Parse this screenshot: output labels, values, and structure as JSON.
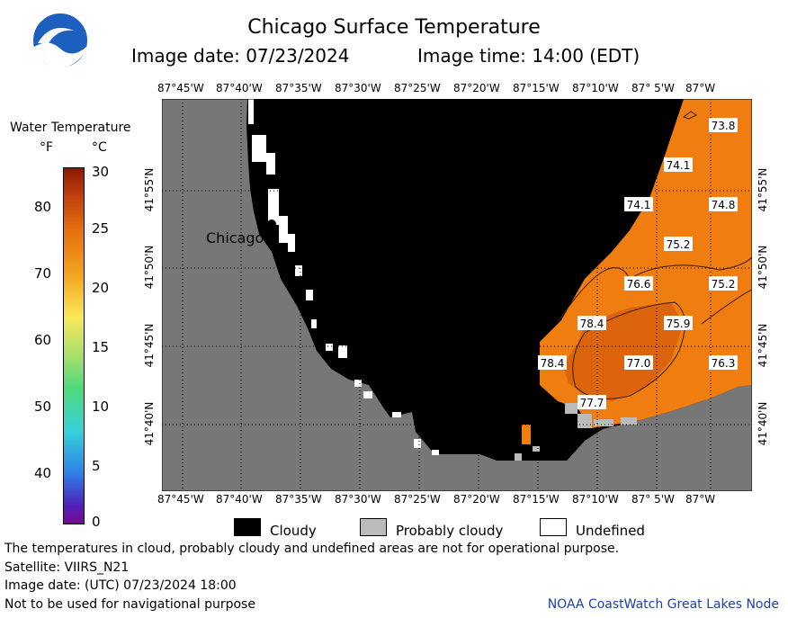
{
  "header": {
    "title": "Chicago Surface Temperature",
    "image_date": "Image date: 07/23/2024",
    "image_time": "Image time: 14:00 (EDT)"
  },
  "colorbar": {
    "title": "Water Temperature",
    "unit_f": "°F",
    "unit_c": "°C",
    "f_ticks": [
      "80",
      "70",
      "60",
      "50",
      "40"
    ],
    "c_ticks": [
      "30",
      "25",
      "20",
      "15",
      "10",
      "5",
      "0"
    ]
  },
  "map": {
    "city_label": "Chicago",
    "lon_labels": [
      "87°45'W",
      "87°40'W",
      "87°35'W",
      "87°30'W",
      "87°25'W",
      "87°20'W",
      "87°15'W",
      "87°10'W",
      "87° 5'W",
      "87°W"
    ],
    "lat_labels": [
      "41°55'N",
      "41°50'N",
      "41°45'N",
      "41°40'N"
    ],
    "temperature_labels": [
      {
        "value": "73.8"
      },
      {
        "value": "74.1"
      },
      {
        "value": "74.1"
      },
      {
        "value": "74.8"
      },
      {
        "value": "75.2"
      },
      {
        "value": "76.6"
      },
      {
        "value": "75.2"
      },
      {
        "value": "78.4"
      },
      {
        "value": "75.9"
      },
      {
        "value": "78.4"
      },
      {
        "value": "77.0"
      },
      {
        "value": "76.3"
      },
      {
        "value": "77.7"
      }
    ]
  },
  "legend": {
    "cloudy": "Cloudy",
    "probably_cloudy": "Probably cloudy",
    "undefined": "Undefined"
  },
  "footer": {
    "line1": "The temperatures in cloud, probably cloudy and undefined areas are not for operational purpose.",
    "line2": "Satellite: VIIRS_N21",
    "line3": "Image date: (UTC) 07/23/2024  18:00",
    "line4": "Not to be used for navigational purpose",
    "credit": "NOAA CoastWatch Great Lakes Node"
  },
  "colors": {
    "land": "#777777",
    "cloudy": "#000000",
    "probably_cloudy": "#bbbbbb",
    "warm_water": "#f07d0f",
    "warmer_water": "#d9620c",
    "credit_text": "#1a3fb5"
  }
}
